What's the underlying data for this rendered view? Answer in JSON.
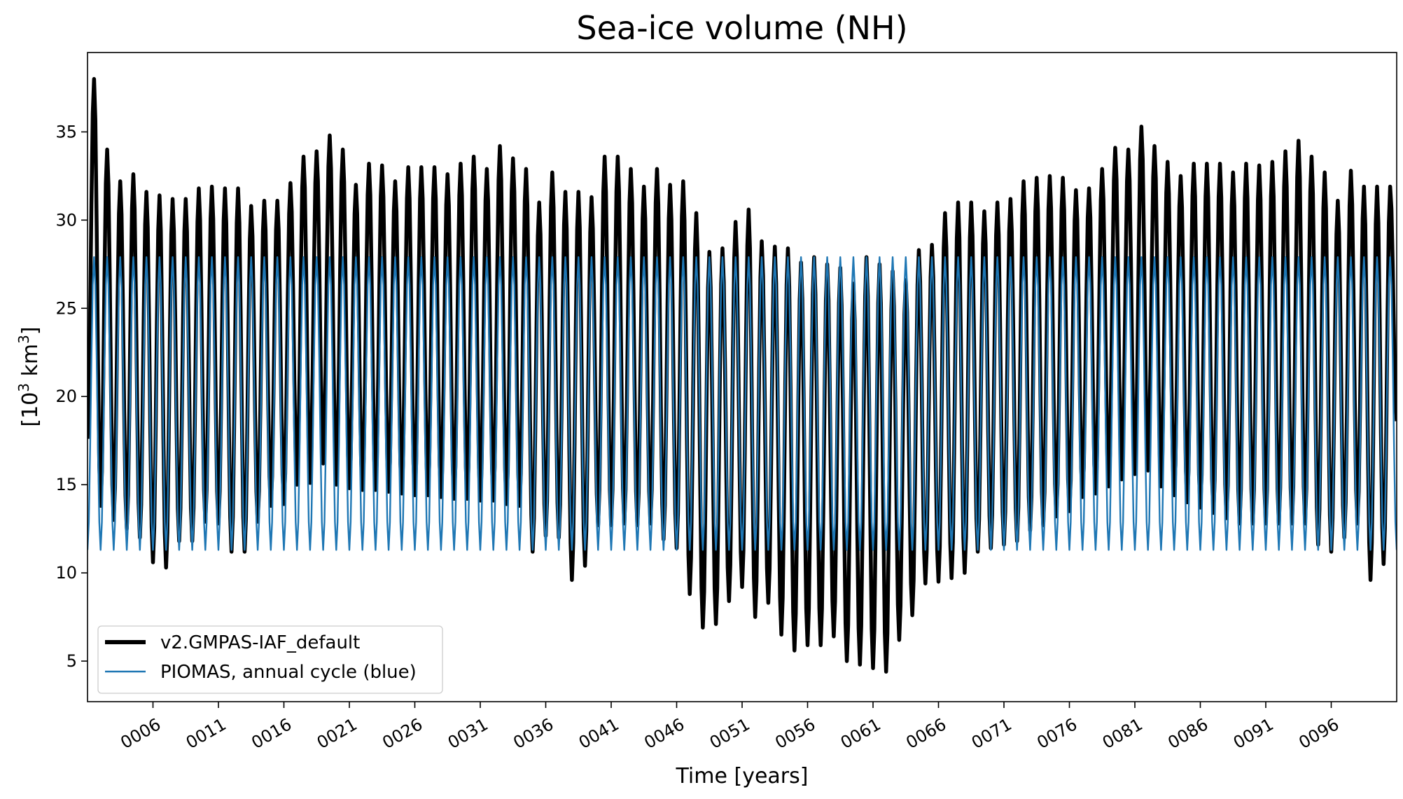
{
  "chart_data": {
    "type": "line",
    "title": "Sea-ice volume (NH)",
    "xlabel": "Time [years]",
    "ylabel_parts": {
      "prefix": "[10",
      "sup1": "3",
      "middle": " km",
      "sup2": "3",
      "suffix": "]"
    },
    "xlim": [
      1.0,
      101.0
    ],
    "ylim": [
      2.7,
      39.5
    ],
    "x_tick_values": [
      6,
      11,
      16,
      21,
      26,
      31,
      36,
      41,
      46,
      51,
      56,
      61,
      66,
      71,
      76,
      81,
      86,
      91,
      96
    ],
    "x_tick_labels": [
      "0006",
      "0011",
      "0016",
      "0021",
      "0026",
      "0031",
      "0036",
      "0041",
      "0046",
      "0051",
      "0056",
      "0061",
      "0066",
      "0071",
      "0076",
      "0081",
      "0086",
      "0091",
      "0096"
    ],
    "y_ticks": [
      5,
      10,
      15,
      20,
      25,
      30,
      35
    ],
    "y_tick_labels": [
      "5",
      "10",
      "15",
      "20",
      "25",
      "30",
      "35"
    ],
    "grid": false,
    "legend": {
      "placement": "lower-left"
    },
    "series": [
      {
        "name": "v2.GMPAS-IAF_default",
        "color": "#000000",
        "annual_cycle": true,
        "years": [
          1,
          2,
          3,
          4,
          5,
          6,
          7,
          8,
          9,
          10,
          11,
          12,
          13,
          14,
          15,
          16,
          17,
          18,
          19,
          20,
          21,
          22,
          23,
          24,
          25,
          26,
          27,
          28,
          29,
          30,
          31,
          32,
          33,
          34,
          35,
          36,
          37,
          38,
          39,
          40,
          41,
          42,
          43,
          44,
          45,
          46,
          47,
          48,
          49,
          50,
          51,
          52,
          53,
          54,
          55,
          56,
          57,
          58,
          59,
          60,
          61,
          62,
          63,
          64,
          65,
          66,
          67,
          68,
          69,
          70,
          71,
          72,
          73,
          74,
          75,
          76,
          77,
          78,
          79,
          80,
          81,
          82,
          83,
          84,
          85,
          86,
          87,
          88,
          89,
          90,
          91,
          92,
          93,
          94,
          95,
          96,
          97,
          98,
          99,
          100
        ],
        "annual_max": [
          38.0,
          34.0,
          32.2,
          32.6,
          31.6,
          31.4,
          31.2,
          31.2,
          31.8,
          31.9,
          31.8,
          31.8,
          30.8,
          31.1,
          31.1,
          32.1,
          33.6,
          33.9,
          34.8,
          34.0,
          32.0,
          33.2,
          33.1,
          32.2,
          33.0,
          33.0,
          33.0,
          32.6,
          33.2,
          33.6,
          32.9,
          34.2,
          33.5,
          32.9,
          31.0,
          32.7,
          31.6,
          31.6,
          31.3,
          33.6,
          33.6,
          32.9,
          31.9,
          32.9,
          32.0,
          32.2,
          30.4,
          28.2,
          28.4,
          29.9,
          30.6,
          28.8,
          28.5,
          28.4,
          27.6,
          27.9,
          27.5,
          27.3,
          26.4,
          27.9,
          27.5,
          27.1,
          26.6,
          28.3,
          28.6,
          30.4,
          31.0,
          31.0,
          30.5,
          31.0,
          31.2,
          32.2,
          32.4,
          32.5,
          32.4,
          31.7,
          31.8,
          32.9,
          34.1,
          34.0,
          35.3,
          34.2,
          33.3,
          32.5,
          33.2,
          33.2,
          33.2,
          32.7,
          33.2,
          33.1,
          33.3,
          33.9,
          34.5,
          33.6,
          32.7,
          31.1,
          32.8,
          31.9,
          31.9,
          31.9
        ],
        "annual_min": [
          17.6,
          13.8,
          13.0,
          12.5,
          12.0,
          10.6,
          10.3,
          11.8,
          11.8,
          12.9,
          12.8,
          11.2,
          11.2,
          12.9,
          13.8,
          13.9,
          15.0,
          15.1,
          16.2,
          15.0,
          14.8,
          14.7,
          14.7,
          14.6,
          14.5,
          14.4,
          14.4,
          14.3,
          14.2,
          14.2,
          14.1,
          14.1,
          13.9,
          13.8,
          11.2,
          12.1,
          12.0,
          9.6,
          10.4,
          12.7,
          12.7,
          12.8,
          12.7,
          12.8,
          11.9,
          11.4,
          8.8,
          6.9,
          7.1,
          8.4,
          9.2,
          7.5,
          8.3,
          6.5,
          5.6,
          5.9,
          5.9,
          6.4,
          5.0,
          4.8,
          4.6,
          4.4,
          6.2,
          7.6,
          9.4,
          9.5,
          9.7,
          10.0,
          11.2,
          11.4,
          11.6,
          11.8,
          12.4,
          12.7,
          13.2,
          13.5,
          14.3,
          14.5,
          14.9,
          15.3,
          15.6,
          15.8,
          14.9,
          14.4,
          14.0,
          13.7,
          13.4,
          13.1,
          12.8,
          12.8,
          12.8,
          12.8,
          12.8,
          12.8,
          11.6,
          11.2,
          12.0,
          12.8,
          9.6,
          10.5
        ],
        "end_value": 18.6
      },
      {
        "name": "PIOMAS, annual cycle (blue)",
        "color": "#1f77b4",
        "annual_cycle": true,
        "years_from": 1,
        "years_to": 100,
        "annual_max": 27.9,
        "annual_min": 11.3
      }
    ]
  }
}
